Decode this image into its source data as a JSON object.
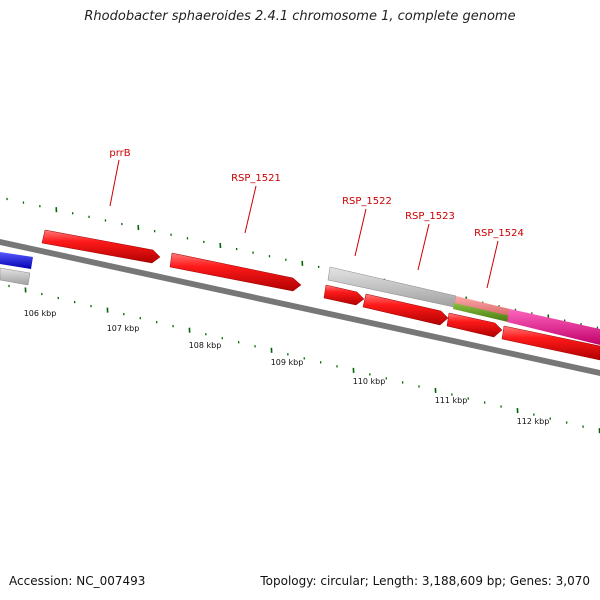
{
  "title": "Rhodobacter sphaeroides 2.4.1 chromosome 1, complete genome",
  "footer": {
    "accession": "Accession: NC_007493",
    "summary": "Topology: circular; Length: 3,188,609 bp; Genes: 3,070"
  },
  "colors": {
    "backbone": "#777777",
    "gene_red": "#ee0000",
    "gene_grey": "#bbbbbb",
    "gene_blue": "#0000ee",
    "gene_pink": "#ee1188",
    "gene_salmon": "#ee7777",
    "gene_olive": "#669922",
    "tick": "#006600",
    "label_red": "#cc0000"
  },
  "ticks": {
    "scale_labels": [
      "106 kbp",
      "107 kbp",
      "108 kbp",
      "109 kbp",
      "110 kbp",
      "111 kbp",
      "112 kbp"
    ]
  },
  "gene_labels": [
    "prrB",
    "RSP_1521",
    "RSP_1522",
    "RSP_1523",
    "RSP_1524"
  ]
}
